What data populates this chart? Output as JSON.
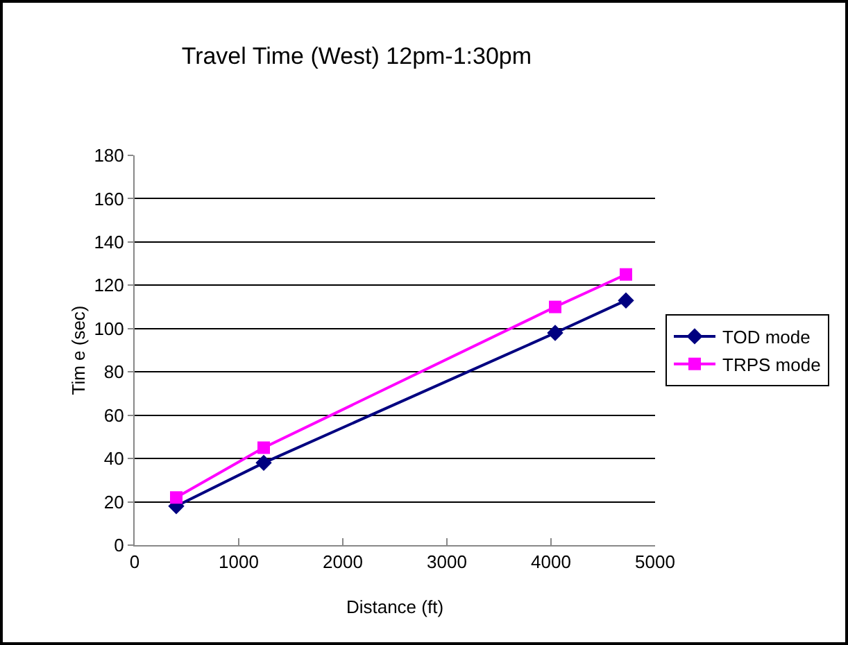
{
  "chart_data": {
    "type": "line",
    "title": "Travel Time (West) 12pm-1:30pm",
    "xlabel": "Distance (ft)",
    "ylabel": "Tim e (sec)",
    "x": [
      400,
      1240,
      4040,
      4720
    ],
    "series": [
      {
        "name": "TOD mode",
        "color": "#000080",
        "marker": "diamond",
        "values": [
          18,
          38,
          98,
          113
        ]
      },
      {
        "name": "TRPS mode",
        "color": "#ff00ff",
        "marker": "square",
        "values": [
          22,
          45,
          110,
          125
        ]
      }
    ],
    "xlim": [
      0,
      5000
    ],
    "xticks": [
      0,
      1000,
      2000,
      3000,
      4000,
      5000
    ],
    "ylim": [
      0,
      180
    ],
    "yticks": [
      0,
      20,
      40,
      60,
      80,
      100,
      120,
      140,
      160,
      180
    ],
    "grid": "y",
    "legend": "right",
    "line_style": "solid"
  }
}
